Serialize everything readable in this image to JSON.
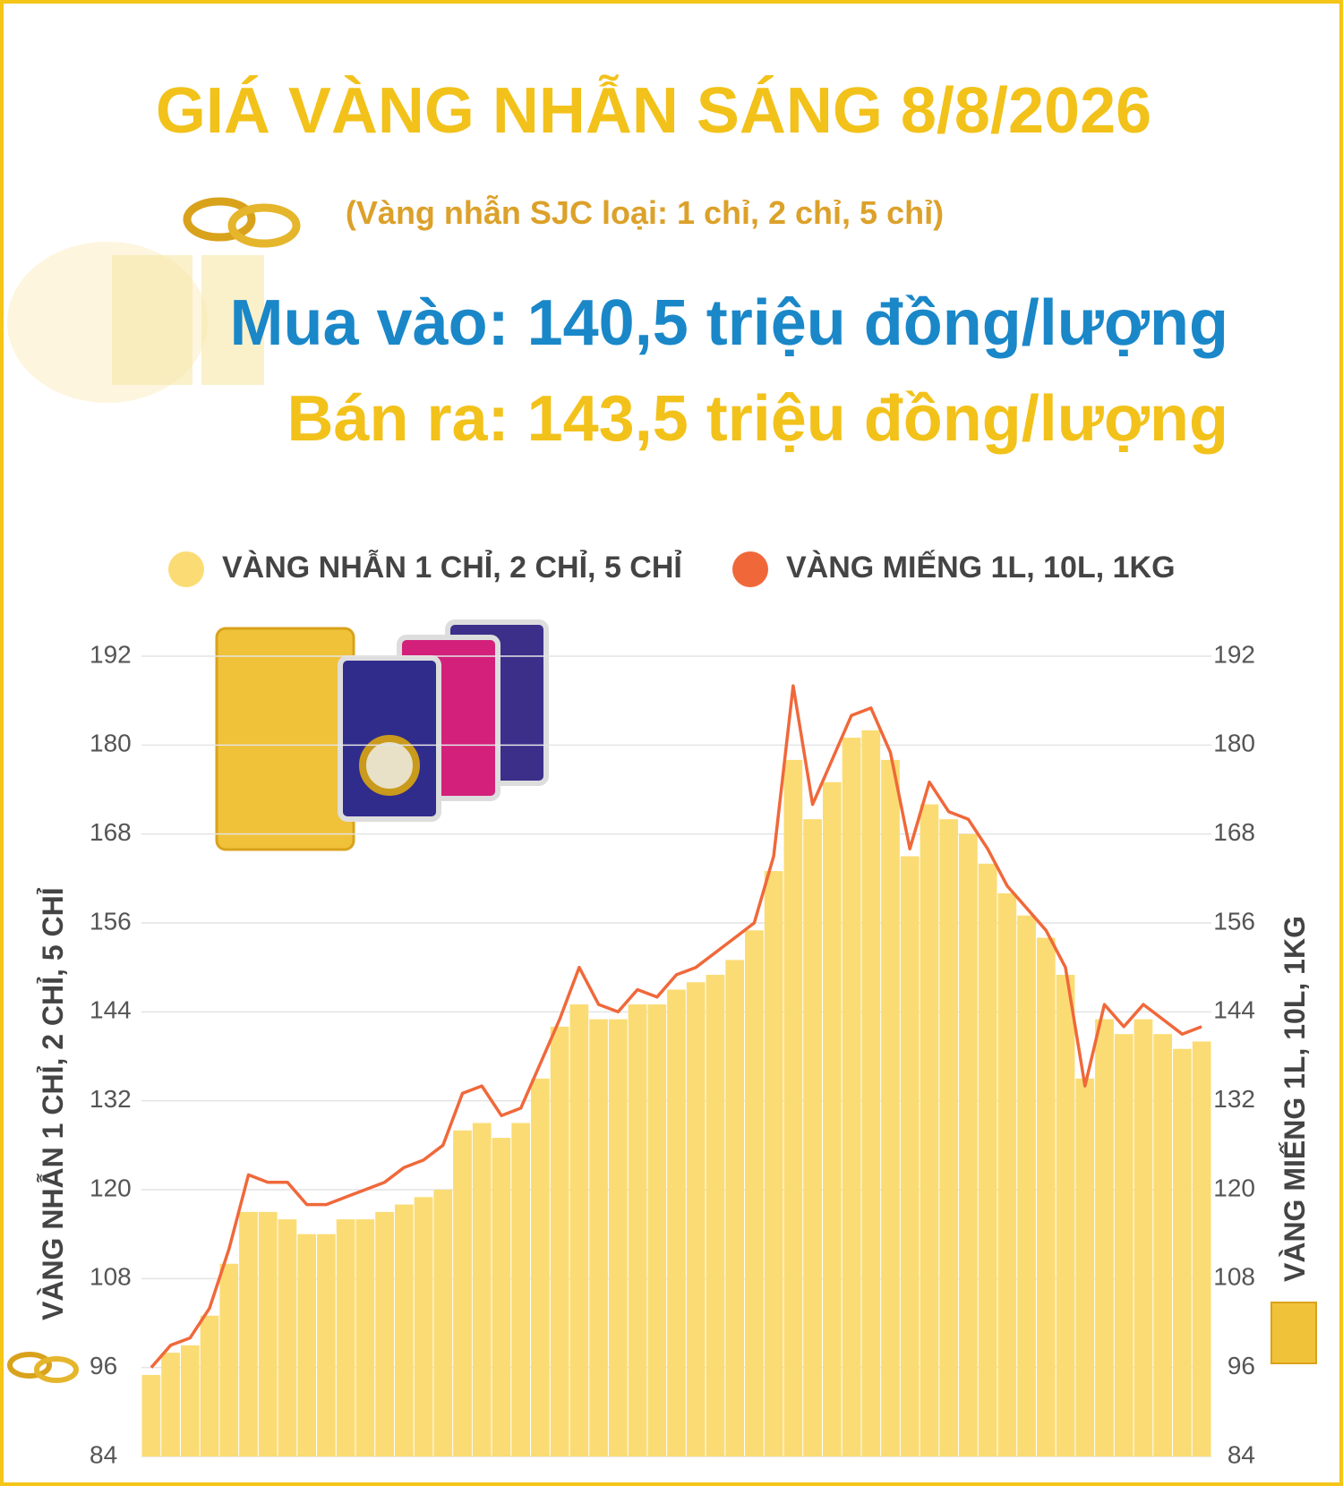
{
  "chart_data": {
    "type": "bar-line",
    "title": "GIÁ VÀNG NHẪN SÁNG 8/8/2026",
    "subtitle": "(Vàng nhẫn SJC loại: 1 chỉ, 2 chỉ, 5 chỉ)",
    "annotations": [
      "Mua vào: 140,5 triệu đồng/lượng",
      "Bán ra: 143,5 triệu đồng/lượng"
    ],
    "ylabel": "VÀNG NHẪN 1 CHỈ, 2 CHỈ, 5 CHỈ",
    "y2label": "VÀNG MIẾNG 1L, 10L, 1KG",
    "ylim": [
      84,
      192
    ],
    "yticks": [
      84,
      96,
      108,
      120,
      132,
      144,
      156,
      168,
      180,
      192
    ],
    "y2lim": [
      84,
      192
    ],
    "y2ticks": [
      84,
      96,
      108,
      120,
      132,
      144,
      156,
      168,
      180,
      192
    ],
    "grid": true,
    "series": [
      {
        "name": "VÀNG NHẪN 1 CHỈ, 2 CHỈ, 5 CHỈ",
        "color": "#fbdc74",
        "type": "bar",
        "values": [
          95,
          98,
          99,
          103,
          110,
          117,
          117,
          116,
          114,
          114,
          116,
          116,
          117,
          118,
          119,
          120,
          128,
          129,
          127,
          129,
          135,
          142,
          145,
          143,
          143,
          145,
          145,
          147,
          148,
          149,
          151,
          155,
          163,
          178,
          170,
          175,
          181,
          182,
          178,
          165,
          172,
          170,
          168,
          164,
          160,
          157,
          154,
          149,
          135,
          143,
          141,
          143,
          141,
          139,
          140
        ]
      },
      {
        "name": "VÀNG MIẾNG 1L, 10L, 1KG",
        "color": "#f0683a",
        "type": "line",
        "axis": "y2",
        "values": [
          96,
          99,
          100,
          104,
          112,
          122,
          121,
          121,
          118,
          118,
          119,
          120,
          121,
          123,
          124,
          126,
          133,
          134,
          130,
          131,
          137,
          143,
          150,
          145,
          144,
          147,
          146,
          149,
          150,
          152,
          154,
          156,
          165,
          188,
          172,
          178,
          184,
          185,
          179,
          166,
          175,
          171,
          170,
          166,
          161,
          158,
          155,
          150,
          134,
          145,
          142,
          145,
          143,
          141,
          142
        ]
      }
    ]
  }
}
